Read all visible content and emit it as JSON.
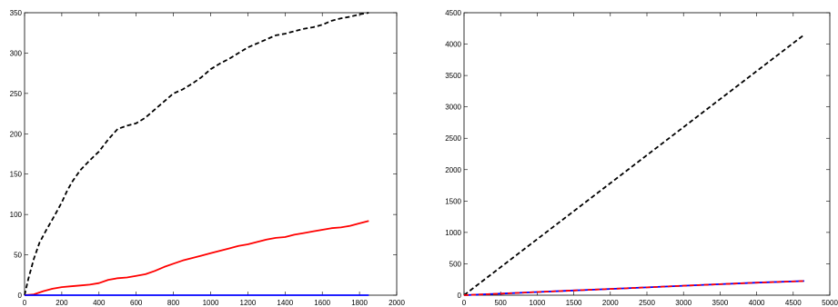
{
  "chart_data": [
    {
      "type": "line",
      "xlim": [
        0,
        2000
      ],
      "ylim": [
        0,
        350
      ],
      "xticks": [
        "0",
        "200",
        "400",
        "600",
        "800",
        "1000",
        "1200",
        "1400",
        "1600",
        "1800",
        "2000"
      ],
      "yticks": [
        "0",
        "50",
        "100",
        "150",
        "200",
        "250",
        "300",
        "350"
      ],
      "grid": false,
      "series": [
        {
          "color": "#000000",
          "style": "dashed",
          "x": [
            0,
            20,
            50,
            80,
            120,
            160,
            200,
            230,
            260,
            300,
            350,
            400,
            450,
            500,
            550,
            600,
            650,
            700,
            750,
            800,
            850,
            900,
            950,
            1000,
            1050,
            1100,
            1150,
            1200,
            1250,
            1300,
            1350,
            1400,
            1450,
            1500,
            1550,
            1600,
            1650,
            1700,
            1750,
            1800,
            1850
          ],
          "y": [
            0,
            20,
            45,
            65,
            82,
            98,
            115,
            130,
            142,
            155,
            167,
            178,
            193,
            206,
            210,
            213,
            220,
            230,
            240,
            250,
            255,
            262,
            270,
            280,
            287,
            293,
            300,
            307,
            312,
            317,
            322,
            324,
            327,
            330,
            332,
            335,
            340,
            343,
            345,
            348,
            350
          ]
        },
        {
          "color": "#ff0000",
          "style": "solid",
          "x": [
            0,
            50,
            100,
            150,
            200,
            250,
            300,
            350,
            400,
            450,
            500,
            550,
            600,
            650,
            700,
            750,
            800,
            850,
            900,
            950,
            1000,
            1050,
            1100,
            1150,
            1200,
            1250,
            1300,
            1350,
            1400,
            1450,
            1500,
            1550,
            1600,
            1650,
            1700,
            1750,
            1800,
            1850
          ],
          "y": [
            0,
            1,
            5,
            8,
            10,
            11,
            12,
            13,
            15,
            19,
            21,
            22,
            24,
            26,
            30,
            35,
            39,
            43,
            46,
            49,
            52,
            55,
            58,
            61,
            63,
            66,
            69,
            71,
            72,
            75,
            77,
            79,
            81,
            83,
            84,
            86,
            89,
            92
          ]
        },
        {
          "color": "#0000ff",
          "style": "solid",
          "x": [
            0,
            1850
          ],
          "y": [
            0,
            0
          ]
        }
      ]
    },
    {
      "type": "line",
      "xlim": [
        0,
        5000
      ],
      "ylim": [
        0,
        4500
      ],
      "xticks": [
        "0",
        "500",
        "1000",
        "1500",
        "2000",
        "2500",
        "3000",
        "3500",
        "4000",
        "4500",
        "5000"
      ],
      "yticks": [
        "0",
        "500",
        "1000",
        "1500",
        "2000",
        "2500",
        "3000",
        "3500",
        "4000",
        "4500"
      ],
      "grid": false,
      "series": [
        {
          "color": "#000000",
          "style": "dashed",
          "x": [
            0,
            4650
          ],
          "y": [
            0,
            4150
          ]
        },
        {
          "color": "#0000ff",
          "style": "solid",
          "x": [
            0,
            500,
            1000,
            1500,
            2000,
            2500,
            3000,
            3500,
            4000,
            4650
          ],
          "y": [
            0,
            25,
            50,
            75,
            100,
            125,
            150,
            175,
            200,
            225
          ]
        },
        {
          "color": "#ff0000",
          "style": "dashed",
          "x": [
            0,
            500,
            1000,
            1500,
            2000,
            2500,
            3000,
            3500,
            4000,
            4650
          ],
          "y": [
            0,
            25,
            50,
            75,
            100,
            125,
            150,
            175,
            200,
            225
          ]
        }
      ]
    }
  ]
}
